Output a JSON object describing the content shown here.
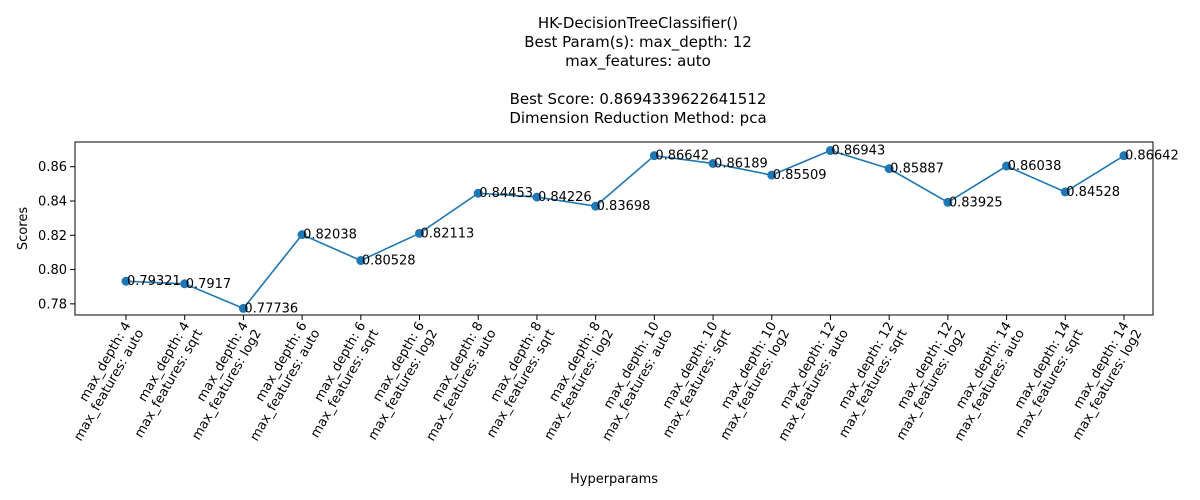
{
  "chart_data": {
    "type": "line",
    "title_lines": [
      "HK-DecisionTreeClassifier()",
      "Best Param(s): max_depth: 12",
      "max_features: auto",
      "",
      "Best Score: 0.8694339622641512",
      "Dimension Reduction Method: pca"
    ],
    "xlabel": "Hyperparams",
    "ylabel": "Scores",
    "ylim": [
      0.7735,
      0.8744
    ],
    "yticks": [
      "0.78",
      "0.80",
      "0.82",
      "0.84",
      "0.86"
    ],
    "grid": false,
    "color": "#1f77b4",
    "categories": [
      [
        "max_depth: 4",
        "max_features: auto"
      ],
      [
        "max_depth: 4",
        "max_features: sqrt"
      ],
      [
        "max_depth: 4",
        "max_features: log2"
      ],
      [
        "max_depth: 6",
        "max_features: auto"
      ],
      [
        "max_depth: 6",
        "max_features: sqrt"
      ],
      [
        "max_depth: 6",
        "max_features: log2"
      ],
      [
        "max_depth: 8",
        "max_features: auto"
      ],
      [
        "max_depth: 8",
        "max_features: sqrt"
      ],
      [
        "max_depth: 8",
        "max_features: log2"
      ],
      [
        "max_depth: 10",
        "max_features: auto"
      ],
      [
        "max_depth: 10",
        "max_features: sqrt"
      ],
      [
        "max_depth: 10",
        "max_features: log2"
      ],
      [
        "max_depth: 12",
        "max_features: auto"
      ],
      [
        "max_depth: 12",
        "max_features: sqrt"
      ],
      [
        "max_depth: 12",
        "max_features: log2"
      ],
      [
        "max_depth: 14",
        "max_features: auto"
      ],
      [
        "max_depth: 14",
        "max_features: sqrt"
      ],
      [
        "max_depth: 14",
        "max_features: log2"
      ]
    ],
    "values": [
      0.79321,
      0.7917,
      0.77736,
      0.82038,
      0.80528,
      0.82113,
      0.84453,
      0.84226,
      0.83698,
      0.86642,
      0.86189,
      0.85509,
      0.86943,
      0.85887,
      0.83925,
      0.86038,
      0.84528,
      0.86642
    ],
    "value_labels": [
      "0.79321",
      "0.7917",
      "0.77736",
      "0.82038",
      "0.80528",
      "0.82113",
      "0.84453",
      "0.84226",
      "0.83698",
      "0.86642",
      "0.86189",
      "0.85509",
      "0.86943",
      "0.85887",
      "0.83925",
      "0.86038",
      "0.84528",
      "0.86642"
    ]
  }
}
